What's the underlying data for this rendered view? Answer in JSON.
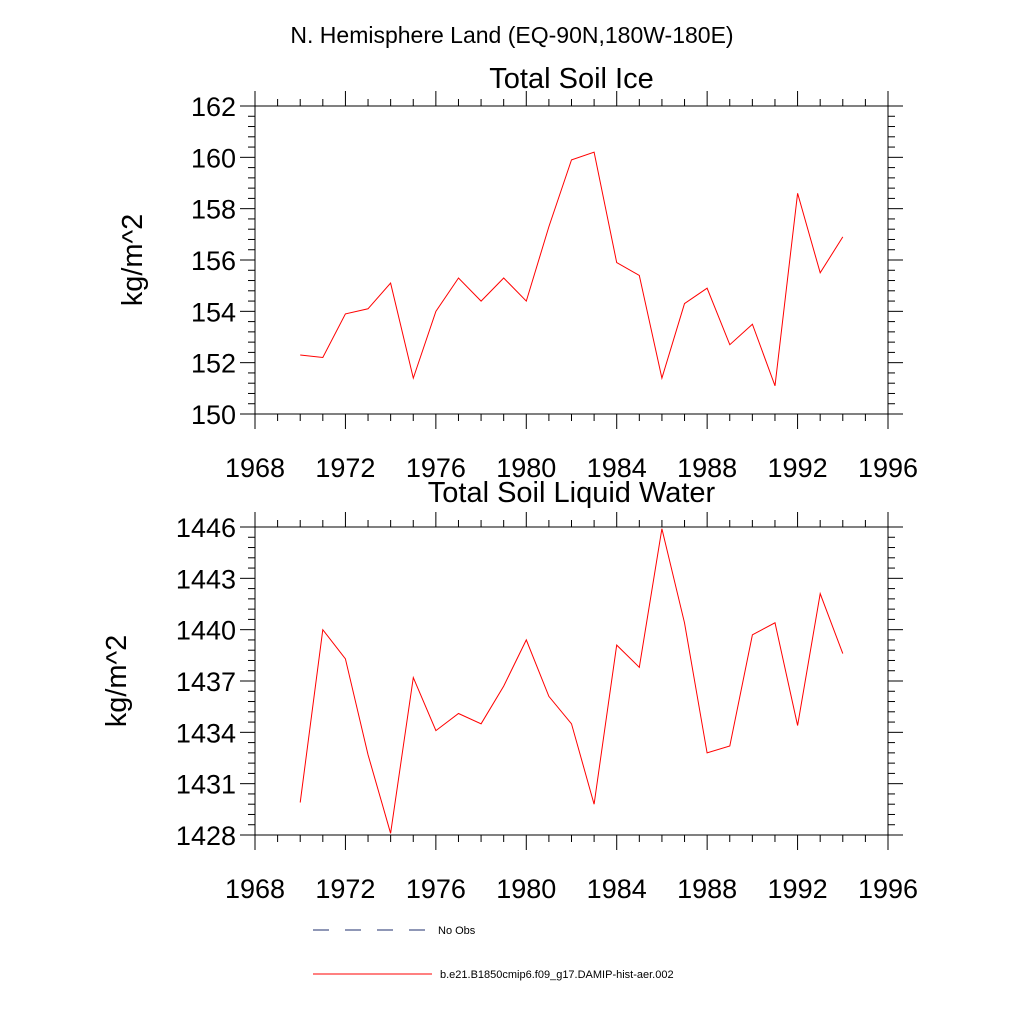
{
  "header": {
    "region_title": "N. Hemisphere Land (EQ-90N,180W-180E)"
  },
  "chart_data": [
    {
      "type": "line",
      "title": "Total Soil Ice",
      "xlabel": "",
      "ylabel": "kg/m^2",
      "xlim": [
        1968,
        1996
      ],
      "ylim": [
        150,
        162
      ],
      "x_ticks": [
        1968,
        1972,
        1976,
        1980,
        1984,
        1988,
        1992,
        1996
      ],
      "y_ticks": [
        150,
        152,
        154,
        156,
        158,
        160,
        162
      ],
      "grid": false,
      "series": [
        {
          "name": "b.e21.B1850cmip6.f09_g17.DAMIP-hist-aer.002",
          "color": "#ff0000",
          "x": [
            1970,
            1971,
            1972,
            1973,
            1974,
            1975,
            1976,
            1977,
            1978,
            1979,
            1980,
            1981,
            1982,
            1983,
            1984,
            1985,
            1986,
            1987,
            1988,
            1989,
            1990,
            1991,
            1992,
            1993,
            1994
          ],
          "y": [
            152.3,
            152.2,
            153.9,
            154.1,
            155.1,
            151.4,
            154.0,
            155.3,
            154.4,
            155.3,
            154.4,
            157.3,
            159.9,
            160.2,
            155.9,
            155.4,
            151.4,
            154.3,
            154.9,
            152.7,
            153.5,
            151.1,
            158.6,
            155.5,
            156.9
          ]
        }
      ]
    },
    {
      "type": "line",
      "title": "Total Soil Liquid Water",
      "xlabel": "",
      "ylabel": "kg/m^2",
      "xlim": [
        1968,
        1996
      ],
      "ylim": [
        1428,
        1446
      ],
      "x_ticks": [
        1968,
        1972,
        1976,
        1980,
        1984,
        1988,
        1992,
        1996
      ],
      "y_ticks": [
        1428,
        1431,
        1434,
        1437,
        1440,
        1443,
        1446
      ],
      "grid": false,
      "series": [
        {
          "name": "b.e21.B1850cmip6.f09_g17.DAMIP-hist-aer.002",
          "color": "#ff0000",
          "x": [
            1970,
            1971,
            1972,
            1973,
            1974,
            1975,
            1976,
            1977,
            1978,
            1979,
            1980,
            1981,
            1982,
            1983,
            1984,
            1985,
            1986,
            1987,
            1988,
            1989,
            1990,
            1991,
            1992,
            1993,
            1994
          ],
          "y": [
            1429.9,
            1440.0,
            1438.3,
            1432.7,
            1428.1,
            1437.2,
            1434.1,
            1435.1,
            1434.5,
            1436.7,
            1439.4,
            1436.1,
            1434.5,
            1429.8,
            1439.1,
            1437.8,
            1445.9,
            1440.4,
            1432.8,
            1433.2,
            1439.7,
            1440.4,
            1434.4,
            1442.1,
            1438.6
          ]
        }
      ]
    }
  ],
  "legend": {
    "items": [
      {
        "label": "No Obs",
        "color": "#1f2f6e",
        "style": "dashed"
      },
      {
        "label": "b.e21.B1850cmip6.f09_g17.DAMIP-hist-aer.002",
        "color": "#ff0000",
        "style": "solid"
      }
    ]
  }
}
